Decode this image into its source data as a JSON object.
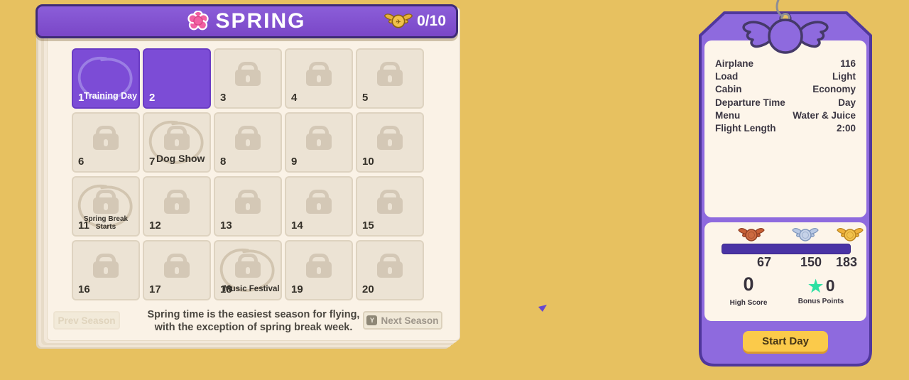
{
  "header": {
    "title": "SPRING",
    "badge": "0/10"
  },
  "calendar": {
    "days": [
      {
        "num": "1",
        "state": "open",
        "circled": true,
        "label": "Training Day",
        "label_class": "white"
      },
      {
        "num": "2",
        "state": "open"
      },
      {
        "num": "3",
        "state": "locked"
      },
      {
        "num": "4",
        "state": "locked"
      },
      {
        "num": "5",
        "state": "locked"
      },
      {
        "num": "6",
        "state": "locked"
      },
      {
        "num": "7",
        "state": "locked",
        "circled": true,
        "label": "Dog Show",
        "label_class": "dark"
      },
      {
        "num": "8",
        "state": "locked"
      },
      {
        "num": "9",
        "state": "locked"
      },
      {
        "num": "10",
        "state": "locked"
      },
      {
        "num": "11",
        "state": "locked",
        "circled": true,
        "label": "Spring Break Starts",
        "label_class": "center-sm"
      },
      {
        "num": "12",
        "state": "locked"
      },
      {
        "num": "13",
        "state": "locked"
      },
      {
        "num": "14",
        "state": "locked"
      },
      {
        "num": "15",
        "state": "locked"
      },
      {
        "num": "16",
        "state": "locked"
      },
      {
        "num": "17",
        "state": "locked"
      },
      {
        "num": "18",
        "state": "locked",
        "circled": true,
        "label": "Music Festival",
        "label_class": "dark-sm"
      },
      {
        "num": "19",
        "state": "locked"
      },
      {
        "num": "20",
        "state": "locked"
      }
    ],
    "info_line1": "Spring time is the easiest season for flying,",
    "info_line2": "with the exception of spring break week.",
    "prev_label": "Prev Season",
    "next_label": "Next Season",
    "next_key": "Y"
  },
  "flight_card": {
    "rows": [
      {
        "label": "Airplane",
        "value": "116"
      },
      {
        "label": "Load",
        "value": "Light"
      },
      {
        "label": "Cabin",
        "value": "Economy"
      },
      {
        "label": "Departure Time",
        "value": "Day"
      },
      {
        "label": "Menu",
        "value": "Water & Juice"
      },
      {
        "label": "Flight Length",
        "value": "2:00"
      }
    ]
  },
  "score_card": {
    "thresholds": [
      "67",
      "150",
      "183"
    ],
    "medal_tiers": [
      "bronze",
      "silver",
      "gold"
    ],
    "high_score": "0",
    "high_score_label": "High Score",
    "bonus_points": "0",
    "bonus_points_label": "Bonus Points"
  },
  "start_button": "Start Day",
  "colors": {
    "background": "#e7c160",
    "header_purple": "#8b5ed9",
    "open_cell_purple": "#7c4cd6",
    "progress_bar": "#4a33a5",
    "start_yellow": "#fbca4a",
    "star_green": "#2ce0a2",
    "medals": {
      "bronze": {
        "wing": "#c75f35",
        "coin": "#cd6b41",
        "stroke": "#8e3d22"
      },
      "silver": {
        "wing": "#b9c9e4",
        "coin": "#c6d2e8",
        "stroke": "#7f96bc"
      },
      "gold": {
        "wing": "#eeb13b",
        "coin": "#f2c24c",
        "stroke": "#b9831e"
      }
    }
  }
}
